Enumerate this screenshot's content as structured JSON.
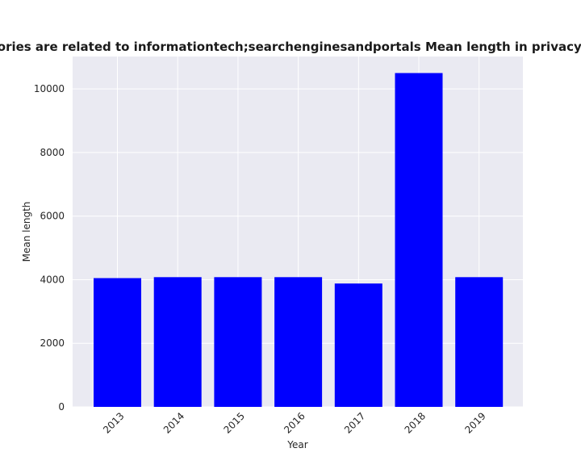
{
  "chart_data": {
    "type": "bar",
    "title": "Categories are related to informationtech;searchenginesandportals Mean length in privacy policies",
    "xlabel": "Year",
    "ylabel": "Mean length",
    "categories": [
      "2013",
      "2014",
      "2015",
      "2016",
      "2017",
      "2018",
      "2019"
    ],
    "values": [
      4050,
      4080,
      4080,
      4080,
      3880,
      10500,
      4080
    ],
    "ylim": [
      0,
      11020
    ],
    "yticks": [
      0,
      2000,
      4000,
      6000,
      8000,
      10000
    ],
    "grid": true,
    "legend": "none",
    "colors": {
      "bar": "#0000ff",
      "plot_background": "#eaeaf2",
      "grid": "#ffffff",
      "text": "#262626"
    }
  }
}
